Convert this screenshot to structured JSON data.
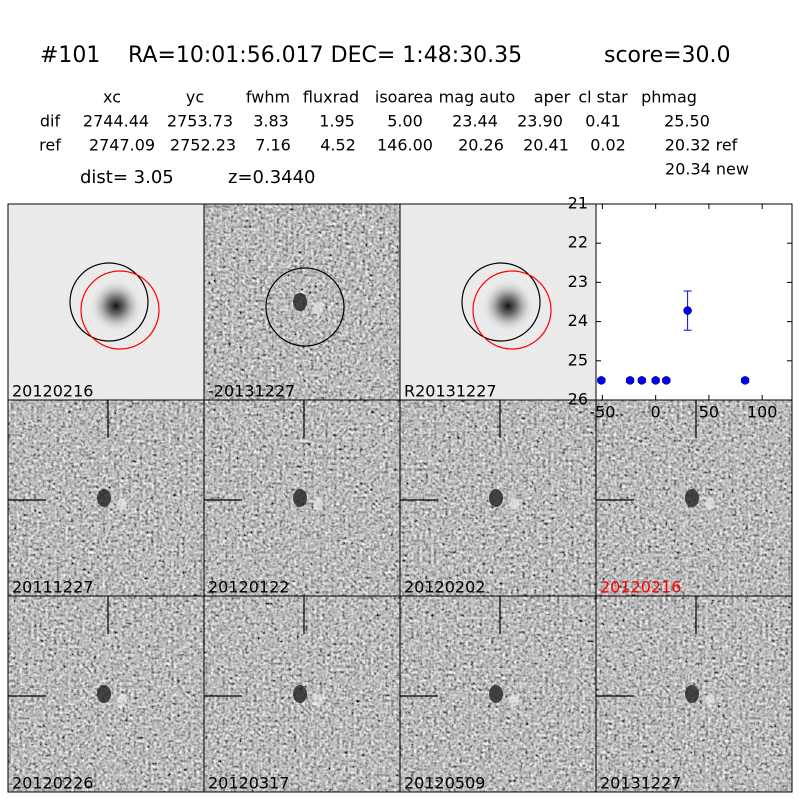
{
  "header": {
    "id": "#101",
    "coords": "RA=10:01:56.017 DEC= 1:48:30.35",
    "score": "score=30.0"
  },
  "table": {
    "columns": [
      "xc",
      "yc",
      "fwhm",
      "fluxrad",
      "isoarea",
      "mag auto",
      "aper",
      "cl star",
      "phmag"
    ],
    "rows": [
      [
        "dif",
        "2744.44",
        "2753.73",
        "3.83",
        "1.95",
        "5.00",
        "23.44",
        "23.90",
        "0.41",
        "25.50"
      ],
      [
        "ref",
        "2747.09",
        "2752.23",
        "7.16",
        "4.52",
        "146.00",
        "20.26",
        "20.41",
        "0.02",
        "20.32 ref"
      ]
    ],
    "note": "20.34 new"
  },
  "info": {
    "dist": "dist=  3.05",
    "z": "z=0.3440"
  },
  "panels": [
    {
      "label": "20120216",
      "label_color": "#000000"
    },
    {
      "label": "-20131227",
      "label_color": "#000000"
    },
    {
      "label": "R20131227",
      "label_color": "#000000"
    },
    {
      "label": "20111227",
      "label_color": "#000000"
    },
    {
      "label": "20120122",
      "label_color": "#000000"
    },
    {
      "label": "20120202",
      "label_color": "#000000"
    },
    {
      "label": "20120216",
      "label_color": "#ff0000"
    },
    {
      "label": "20120226",
      "label_color": "#000000"
    },
    {
      "label": "20120317",
      "label_color": "#000000"
    },
    {
      "label": "20120509",
      "label_color": "#000000"
    },
    {
      "label": "20131227",
      "label_color": "#000000"
    }
  ],
  "chart_data": {
    "type": "scatter",
    "x": [
      -51,
      -24,
      -13,
      0,
      10,
      30,
      84
    ],
    "values": [
      25.5,
      25.5,
      25.5,
      25.5,
      25.5,
      23.72,
      25.5
    ],
    "errors": [
      0.05,
      0.05,
      0.05,
      0.05,
      0.05,
      0.5,
      0.05
    ],
    "color": "#0000ff",
    "xlim": [
      -56,
      128
    ],
    "ylim": [
      26,
      21
    ],
    "xticks": [
      -50,
      0,
      50,
      100
    ],
    "yticks": [
      21,
      22,
      23,
      24,
      25,
      26
    ]
  }
}
